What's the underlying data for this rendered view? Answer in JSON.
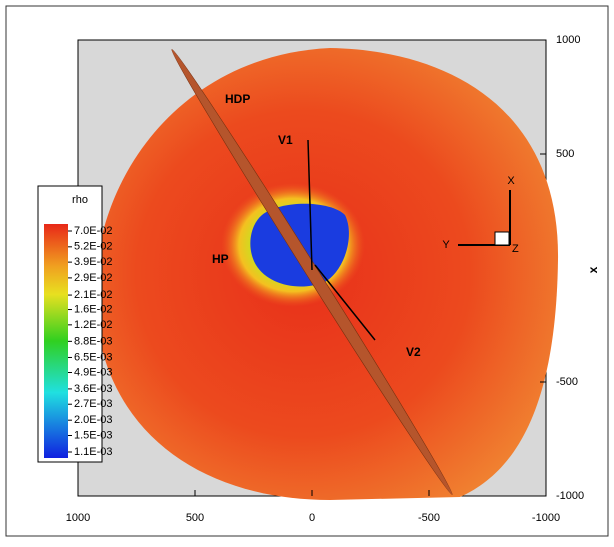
{
  "chart_data": {
    "type": "surface",
    "xlim": [
      1000,
      -1000
    ],
    "xticks": [
      1000,
      500,
      0,
      -500,
      -1000
    ],
    "ylim": [
      -1000,
      1000
    ],
    "yticks": [
      1000,
      500,
      -500,
      -1000
    ],
    "y_label": "x",
    "annotations": [
      "HDP",
      "V1",
      "HP",
      "V2"
    ],
    "triad": [
      "X",
      "Y",
      "Z"
    ],
    "colorbar": {
      "title": "rho",
      "log": true,
      "ticks": [
        {
          "value": 0.07,
          "label": "7.0E-02"
        },
        {
          "value": 0.052,
          "label": "5.2E-02"
        },
        {
          "value": 0.039,
          "label": "3.9E-02"
        },
        {
          "value": 0.029,
          "label": "2.9E-02"
        },
        {
          "value": 0.021,
          "label": "2.1E-02"
        },
        {
          "value": 0.016,
          "label": "1.6E-02"
        },
        {
          "value": 0.012,
          "label": "1.2E-02"
        },
        {
          "value": 0.0088,
          "label": "8.8E-03"
        },
        {
          "value": 0.0065,
          "label": "6.5E-03"
        },
        {
          "value": 0.0049,
          "label": "4.9E-03"
        },
        {
          "value": 0.0036,
          "label": "3.6E-03"
        },
        {
          "value": 0.0027,
          "label": "2.7E-03"
        },
        {
          "value": 0.002,
          "label": "2.0E-03"
        },
        {
          "value": 0.0015,
          "label": "1.5E-03"
        },
        {
          "value": 0.0011,
          "label": "1.1E-03"
        }
      ]
    }
  }
}
